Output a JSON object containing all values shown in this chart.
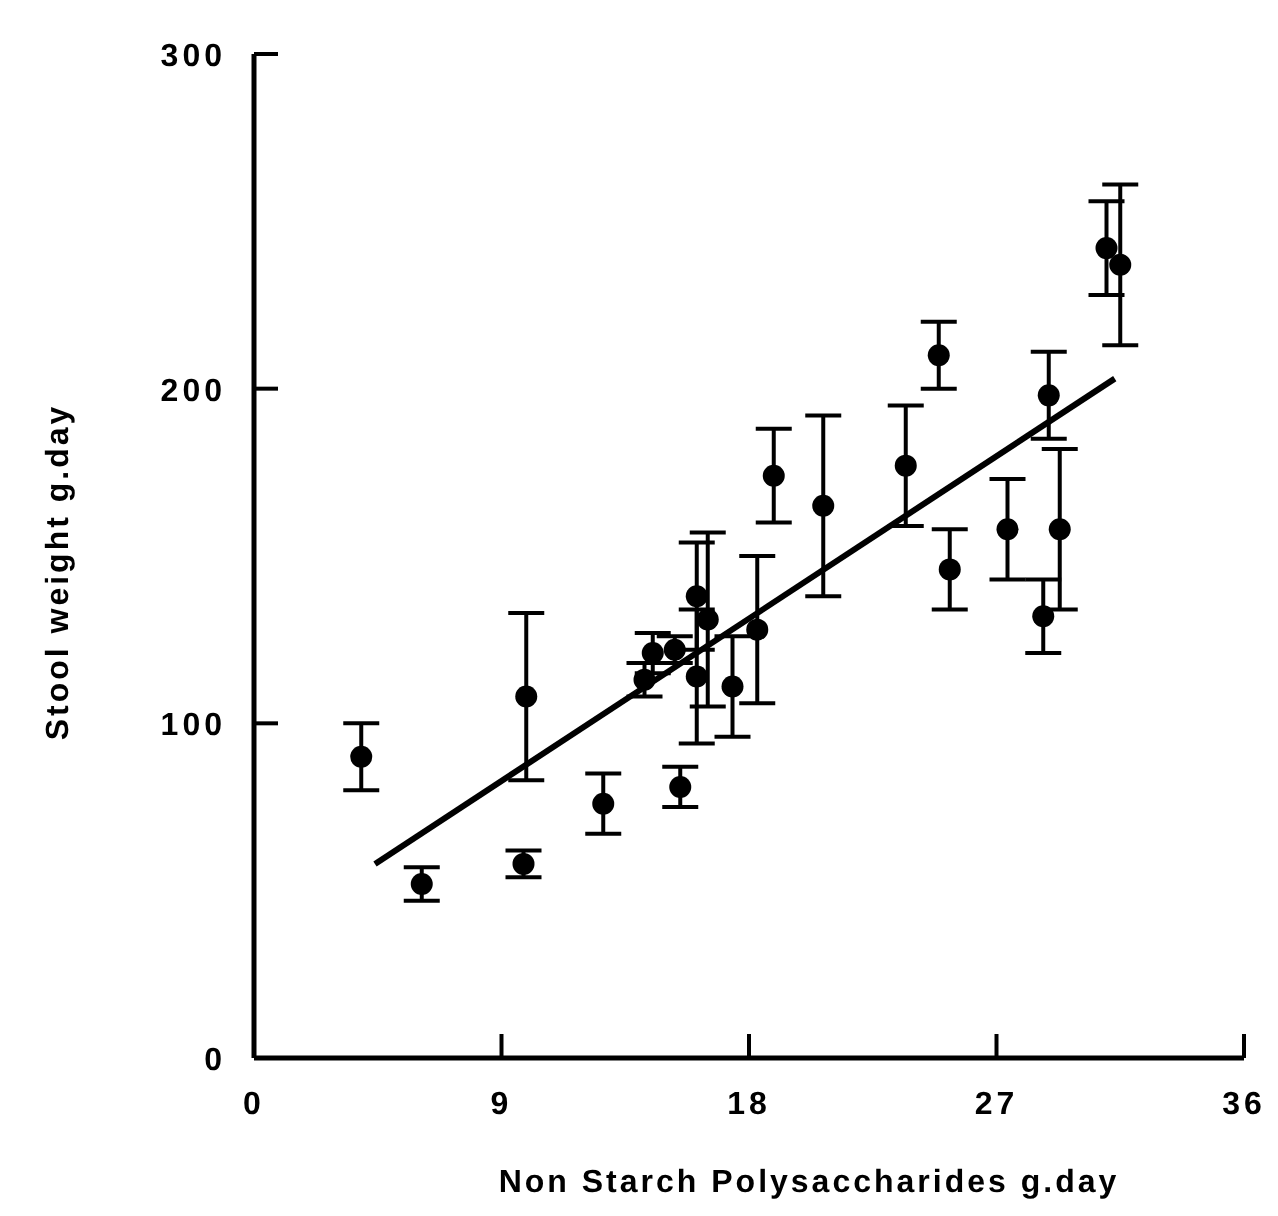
{
  "chart_data": {
    "type": "scatter",
    "xlabel": "Non Starch Polysaccharides g.day",
    "ylabel": "Stool weight g.day",
    "xlim": [
      0,
      36
    ],
    "xticks": [
      0,
      9,
      18,
      27,
      36
    ],
    "ylim": [
      0,
      300
    ],
    "yticks": [
      0,
      100,
      200,
      300
    ],
    "grid": false,
    "marker": "circle",
    "series": [
      {
        "color": "#000000",
        "x": [
          3.9,
          6.1,
          9.9,
          9.8,
          12.7,
          15.5,
          14.2,
          14.5,
          15.3,
          16.1,
          16.5,
          16.1,
          17.4,
          18.3,
          18.9,
          20.7,
          23.7,
          24.9,
          25.3,
          27.4,
          28.9,
          28.7,
          29.3,
          31.0,
          31.5
        ],
        "values": [
          90,
          52,
          108,
          58,
          76,
          81,
          113,
          121,
          122,
          138,
          131,
          114,
          111,
          128,
          174,
          165,
          177,
          210,
          146,
          158,
          198,
          132,
          158,
          242,
          237
        ],
        "errors": [
          10,
          5,
          25,
          4,
          9,
          6,
          5,
          6,
          4,
          16,
          26,
          20,
          15,
          22,
          14,
          27,
          18,
          10,
          12,
          15,
          13,
          11,
          24,
          14,
          24
        ]
      },
      {
        "type": "line",
        "color": "#000000",
        "marker": "none",
        "line_style": "solid",
        "x": [
          4.4,
          31.3
        ],
        "values": [
          58,
          203
        ]
      }
    ]
  }
}
